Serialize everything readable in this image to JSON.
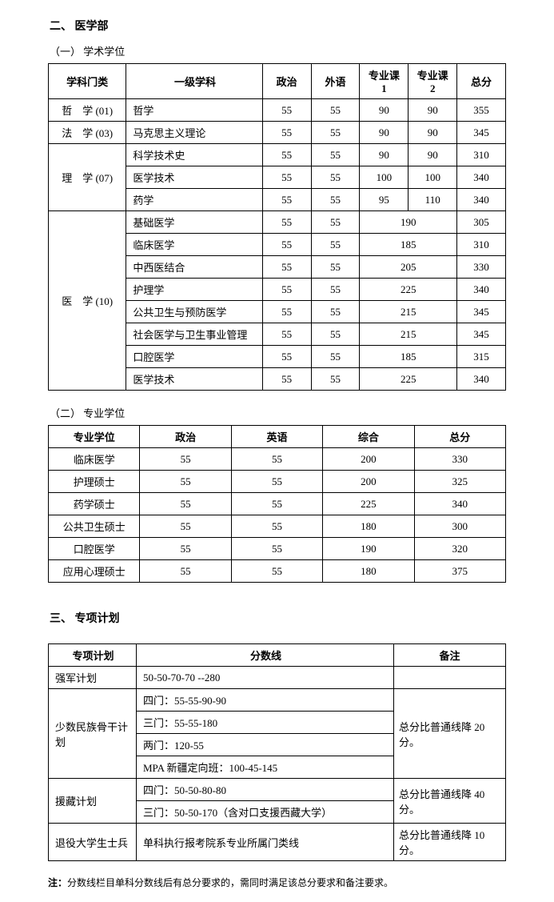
{
  "section2": {
    "title": "二、 医学部",
    "sub1": {
      "title": "（一） 学术学位",
      "headers": [
        "学科门类",
        "一级学科",
        "政治",
        "外语",
        "专业课 1",
        "专业课 2",
        "总分"
      ],
      "groups": [
        {
          "cat": "哲　学 (01)",
          "rows": [
            {
              "subj": "哲学",
              "c": [
                "55",
                "55",
                "90",
                "90",
                "355"
              ]
            }
          ]
        },
        {
          "cat": "法　学 (03)",
          "rows": [
            {
              "subj": "马克思主义理论",
              "c": [
                "55",
                "55",
                "90",
                "90",
                "345"
              ]
            }
          ]
        },
        {
          "cat": "理　学 (07)",
          "rows": [
            {
              "subj": "科学技术史",
              "c": [
                "55",
                "55",
                "90",
                "90",
                "310"
              ]
            },
            {
              "subj": "医学技术",
              "c": [
                "55",
                "55",
                "100",
                "100",
                "340"
              ]
            },
            {
              "subj": "药学",
              "c": [
                "55",
                "55",
                "95",
                "110",
                "340"
              ]
            }
          ]
        },
        {
          "cat": "医　学 (10)",
          "rows": [
            {
              "subj": "基础医学",
              "c": [
                "55",
                "55",
                "190",
                null,
                "305"
              ]
            },
            {
              "subj": "临床医学",
              "c": [
                "55",
                "55",
                "185",
                null,
                "310"
              ]
            },
            {
              "subj": "中西医结合",
              "c": [
                "55",
                "55",
                "205",
                null,
                "330"
              ]
            },
            {
              "subj": "护理学",
              "c": [
                "55",
                "55",
                "225",
                null,
                "340"
              ]
            },
            {
              "subj": "公共卫生与预防医学",
              "c": [
                "55",
                "55",
                "215",
                null,
                "345"
              ]
            },
            {
              "subj": "社会医学与卫生事业管理",
              "c": [
                "55",
                "55",
                "215",
                null,
                "345"
              ]
            },
            {
              "subj": "口腔医学",
              "c": [
                "55",
                "55",
                "185",
                null,
                "315"
              ]
            },
            {
              "subj": "医学技术",
              "c": [
                "55",
                "55",
                "225",
                null,
                "340"
              ]
            }
          ]
        }
      ]
    },
    "sub2": {
      "title": "（二） 专业学位",
      "headers": [
        "专业学位",
        "政治",
        "英语",
        "综合",
        "总分"
      ],
      "rows": [
        {
          "n": "临床医学",
          "c": [
            "55",
            "55",
            "200",
            "330"
          ]
        },
        {
          "n": "护理硕士",
          "c": [
            "55",
            "55",
            "200",
            "325"
          ]
        },
        {
          "n": "药学硕士",
          "c": [
            "55",
            "55",
            "225",
            "340"
          ]
        },
        {
          "n": "公共卫生硕士",
          "c": [
            "55",
            "55",
            "180",
            "300"
          ]
        },
        {
          "n": "口腔医学",
          "c": [
            "55",
            "55",
            "190",
            "320"
          ]
        },
        {
          "n": "应用心理硕士",
          "c": [
            "55",
            "55",
            "180",
            "375"
          ]
        }
      ]
    }
  },
  "section3": {
    "title": "三、 专项计划",
    "headers": [
      "专项计划",
      "分数线",
      "备注"
    ],
    "rows": [
      {
        "plan": "强军计划",
        "lines": [
          "50-50-70-70 --280"
        ],
        "remark": ""
      },
      {
        "plan": "少数民族骨干计划",
        "lines": [
          "四门：55-55-90-90",
          "三门：55-55-180",
          "两门：120-55",
          "MPA 新疆定向班：100-45-145"
        ],
        "remark": "总分比普通线降 20 分。"
      },
      {
        "plan": "援藏计划",
        "lines": [
          "四门：50-50-80-80",
          "三门：50-50-170（含对口支援西藏大学）"
        ],
        "remark": "总分比普通线降 40 分。"
      },
      {
        "plan": "退役大学生士兵",
        "lines": [
          "单科执行报考院系专业所属门类线"
        ],
        "remark": "总分比普通线降 10 分。"
      }
    ],
    "note_label": "注：",
    "note_text": "分数线栏目单科分数线后有总分要求的，需同时满足该总分要求和备注要求。"
  }
}
